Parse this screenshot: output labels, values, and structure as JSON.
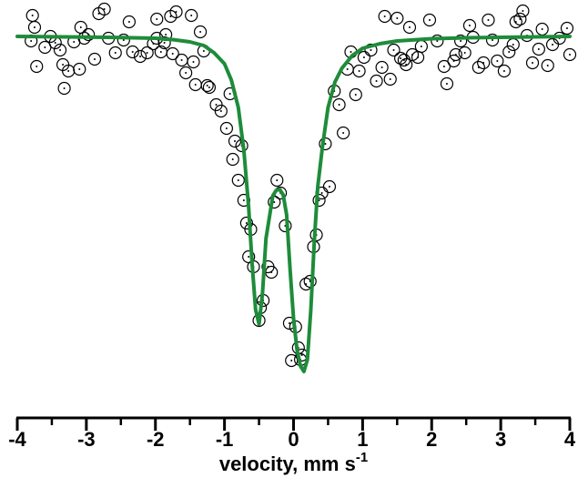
{
  "chart_data": {
    "type": "scatter",
    "title": "",
    "xlabel": "velocity, mm s",
    "xlabel_superscript": "-1",
    "ylabel": "",
    "xlim": [
      -4,
      4
    ],
    "x_ticks": [
      -4,
      -3,
      -2,
      -1,
      0,
      1,
      2,
      3,
      4
    ],
    "x_tick_labels": [
      "-4",
      "-3",
      "-2",
      "-1",
      "0",
      "1",
      "2",
      "3",
      "4"
    ],
    "y_axis_shown": false,
    "grid": false,
    "legend": "none",
    "colors": {
      "fit_line": "#1e8c3a",
      "markers": "#000000",
      "axis": "#000000"
    },
    "series": [
      {
        "kind": "data",
        "marker": "circle-dot",
        "points": [
          [
            -3.78,
            17
          ],
          [
            -3.75,
            30
          ],
          [
            -3.8,
            45
          ],
          [
            -3.72,
            73
          ],
          [
            -3.6,
            52
          ],
          [
            -3.52,
            40
          ],
          [
            -3.45,
            47
          ],
          [
            -3.38,
            55
          ],
          [
            -3.34,
            71
          ],
          [
            -3.32,
            97
          ],
          [
            -3.26,
            78
          ],
          [
            -3.18,
            46
          ],
          [
            -3.1,
            76
          ],
          [
            -3.08,
            30
          ],
          [
            -3.03,
            42
          ],
          [
            -2.97,
            38
          ],
          [
            -2.88,
            65
          ],
          [
            -2.82,
            15
          ],
          [
            -2.74,
            10
          ],
          [
            -2.68,
            42
          ],
          [
            -2.58,
            58
          ],
          [
            -2.46,
            44
          ],
          [
            -2.38,
            24
          ],
          [
            -2.33,
            57
          ],
          [
            -2.22,
            62
          ],
          [
            -2.12,
            58
          ],
          [
            -2.03,
            48
          ],
          [
            -1.98,
            42
          ],
          [
            -1.98,
            21
          ],
          [
            -1.92,
            57
          ],
          [
            -1.87,
            47
          ],
          [
            -1.85,
            38
          ],
          [
            -1.78,
            18
          ],
          [
            -1.75,
            59
          ],
          [
            -1.7,
            13
          ],
          [
            -1.62,
            66
          ],
          [
            -1.56,
            80
          ],
          [
            -1.48,
            17
          ],
          [
            -1.45,
            68
          ],
          [
            -1.42,
            93
          ],
          [
            -1.35,
            35
          ],
          [
            -1.3,
            56
          ],
          [
            -1.25,
            94
          ],
          [
            -1.22,
            96
          ],
          [
            -1.12,
            115
          ],
          [
            -1.05,
            122
          ],
          [
            -0.97,
            141
          ],
          [
            -0.92,
            103
          ],
          [
            -0.88,
            175
          ],
          [
            -0.85,
            155
          ],
          [
            -0.8,
            198
          ],
          [
            -0.75,
            160
          ],
          [
            -0.72,
            220
          ],
          [
            -0.68,
            245
          ],
          [
            -0.65,
            282
          ],
          [
            -0.62,
            252
          ],
          [
            -0.58,
            293
          ],
          [
            -0.5,
            352
          ],
          [
            -0.48,
            338
          ],
          [
            -0.44,
            330
          ],
          [
            -0.37,
            293
          ],
          [
            -0.32,
            299
          ],
          [
            -0.28,
            222
          ],
          [
            -0.24,
            198
          ],
          [
            -0.19,
            212
          ],
          [
            -0.12,
            248
          ],
          [
            -0.06,
            355
          ],
          [
            -0.03,
            396
          ],
          [
            0.03,
            359
          ],
          [
            0.07,
            382
          ],
          [
            0.1,
            395
          ],
          [
            0.12,
            390
          ],
          [
            0.18,
            312
          ],
          [
            0.24,
            309
          ],
          [
            0.29,
            271
          ],
          [
            0.33,
            258
          ],
          [
            0.37,
            220
          ],
          [
            0.41,
            212
          ],
          [
            0.46,
            158
          ],
          [
            0.52,
            205
          ],
          [
            0.59,
            100
          ],
          [
            0.66,
            115
          ],
          [
            0.72,
            146
          ],
          [
            0.78,
            76
          ],
          [
            0.83,
            57
          ],
          [
            0.9,
            104
          ],
          [
            0.95,
            78
          ],
          [
            1.02,
            63
          ],
          [
            1.12,
            55
          ],
          [
            1.2,
            89
          ],
          [
            1.28,
            74
          ],
          [
            1.32,
            18
          ],
          [
            1.4,
            87
          ],
          [
            1.45,
            55
          ],
          [
            1.5,
            20
          ],
          [
            1.55,
            64
          ],
          [
            1.6,
            66
          ],
          [
            1.63,
            71
          ],
          [
            1.68,
            30
          ],
          [
            1.72,
            60
          ],
          [
            1.8,
            63
          ],
          [
            1.85,
            51
          ],
          [
            1.97,
            22
          ],
          [
            2.08,
            45
          ],
          [
            2.18,
            73
          ],
          [
            2.22,
            92
          ],
          [
            2.32,
            67
          ],
          [
            2.35,
            60
          ],
          [
            2.42,
            45
          ],
          [
            2.48,
            58
          ],
          [
            2.55,
            28
          ],
          [
            2.6,
            41
          ],
          [
            2.68,
            74
          ],
          [
            2.75,
            69
          ],
          [
            2.82,
            22
          ],
          [
            2.88,
            44
          ],
          [
            2.95,
            67
          ],
          [
            3.05,
            78
          ],
          [
            3.12,
            57
          ],
          [
            3.18,
            49
          ],
          [
            3.22,
            24
          ],
          [
            3.28,
            21
          ],
          [
            3.32,
            12
          ],
          [
            3.38,
            39
          ],
          [
            3.46,
            69
          ],
          [
            3.55,
            54
          ],
          [
            3.6,
            32
          ],
          [
            3.68,
            72
          ],
          [
            3.75,
            49
          ],
          [
            3.85,
            42
          ],
          [
            3.96,
            31
          ],
          [
            4.0,
            60
          ]
        ]
      },
      {
        "kind": "fit",
        "line": "solid",
        "points": [
          [
            -4.0,
            40
          ],
          [
            -3.5,
            40.4
          ],
          [
            -3.0,
            40.7
          ],
          [
            -2.5,
            41.2
          ],
          [
            -2.0,
            42
          ],
          [
            -1.75,
            43.5
          ],
          [
            -1.5,
            46
          ],
          [
            -1.3,
            50
          ],
          [
            -1.15,
            58
          ],
          [
            -1.0,
            70
          ],
          [
            -0.9,
            88
          ],
          [
            -0.8,
            118
          ],
          [
            -0.72,
            165
          ],
          [
            -0.65,
            228
          ],
          [
            -0.6,
            290
          ],
          [
            -0.55,
            340
          ],
          [
            -0.5,
            356
          ],
          [
            -0.45,
            322
          ],
          [
            -0.4,
            262
          ],
          [
            -0.34,
            234
          ],
          [
            -0.3,
            215
          ],
          [
            -0.25,
            209
          ],
          [
            -0.2,
            208
          ],
          [
            -0.15,
            214
          ],
          [
            -0.1,
            236
          ],
          [
            -0.05,
            296
          ],
          [
            0.0,
            350
          ],
          [
            0.05,
            384
          ],
          [
            0.1,
            402
          ],
          [
            0.15,
            408
          ],
          [
            0.2,
            395
          ],
          [
            0.25,
            340
          ],
          [
            0.3,
            265
          ],
          [
            0.35,
            205
          ],
          [
            0.42,
            160
          ],
          [
            0.5,
            118
          ],
          [
            0.6,
            90
          ],
          [
            0.7,
            75
          ],
          [
            0.85,
            61
          ],
          [
            1.0,
            53
          ],
          [
            1.25,
            48
          ],
          [
            1.5,
            45
          ],
          [
            2.0,
            42.5
          ],
          [
            2.5,
            41.5
          ],
          [
            3.0,
            41
          ],
          [
            3.5,
            40.5
          ],
          [
            4.0,
            40
          ]
        ]
      }
    ]
  }
}
